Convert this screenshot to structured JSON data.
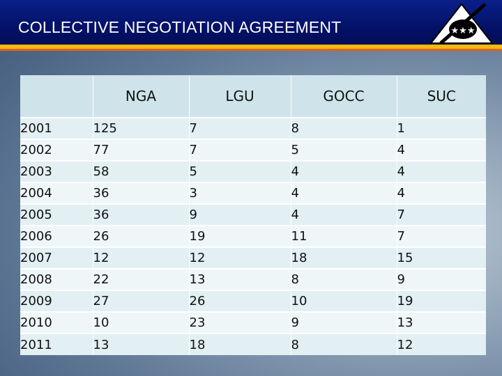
{
  "header": {
    "title": "COLLECTIVE NEGOTIATION AGREEMENT",
    "logo_icon": "triangle-stars-emblem-icon"
  },
  "colors": {
    "header_blue": "#031166",
    "stripe_yellow": "#f2b90f",
    "stripe_orange": "#e0641c",
    "table_header": "#cfe3ea",
    "table_cell": "#e2eff3"
  },
  "table": {
    "columns": [
      "",
      "NGA",
      "LGU",
      "GOCC",
      "SUC"
    ],
    "rows": [
      [
        "2001",
        "125",
        "7",
        "8",
        "1"
      ],
      [
        "2002",
        "77",
        "7",
        "5",
        "4"
      ],
      [
        "2003",
        "58",
        "5",
        "4",
        "4"
      ],
      [
        "2004",
        "36",
        "3",
        "4",
        "4"
      ],
      [
        "2005",
        "36",
        "9",
        "4",
        "7"
      ],
      [
        "2006",
        "26",
        "19",
        "11",
        "7"
      ],
      [
        "2007",
        "12",
        "12",
        "18",
        "15"
      ],
      [
        "2008",
        "22",
        "13",
        "8",
        "9"
      ],
      [
        "2009",
        "27",
        "26",
        "10",
        "19"
      ],
      [
        "2010",
        "10",
        "23",
        "9",
        "13"
      ],
      [
        "2011",
        "13",
        "18",
        "8",
        "12"
      ]
    ]
  }
}
